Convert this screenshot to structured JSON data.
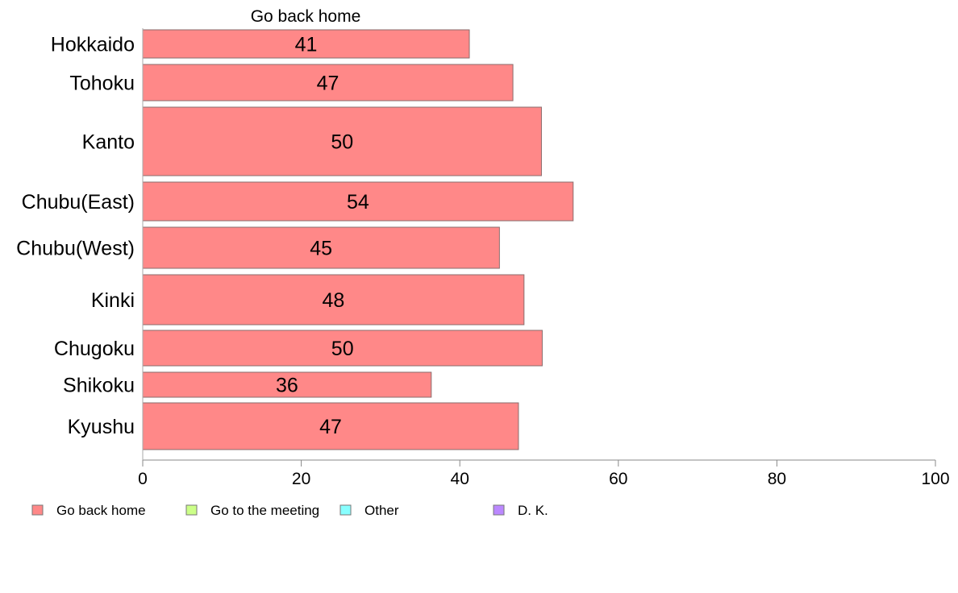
{
  "chart_data": {
    "type": "bar",
    "orientation": "horizontal",
    "title": "Go back home",
    "categories": [
      "Hokkaido",
      "Tohoku",
      "Kanto",
      "Chubu(East)",
      "Chubu(West)",
      "Kinki",
      "Chugoku",
      "Shikoku",
      "Kyushu"
    ],
    "series": [
      {
        "name": "Go back home",
        "color": "#ff8888",
        "values": [
          41.2,
          46.7,
          50.3,
          54.3,
          45.0,
          48.1,
          50.4,
          36.4,
          47.4
        ],
        "labels": [
          "41",
          "47",
          "50",
          "54",
          "45",
          "48",
          "50",
          "36",
          "47"
        ]
      }
    ],
    "xlim": [
      0,
      100
    ],
    "xticks": [
      "0",
      "20",
      "40",
      "60",
      "80",
      "100"
    ],
    "grid": false,
    "legend": {
      "position": "bottom-left",
      "items": [
        {
          "label": "Go back home",
          "color": "#ff8888"
        },
        {
          "label": "Go to the meeting",
          "color": "#ccff88"
        },
        {
          "label": "Other",
          "color": "#88ffff"
        },
        {
          "label": "D. K.",
          "color": "#bb88ff"
        }
      ]
    }
  }
}
